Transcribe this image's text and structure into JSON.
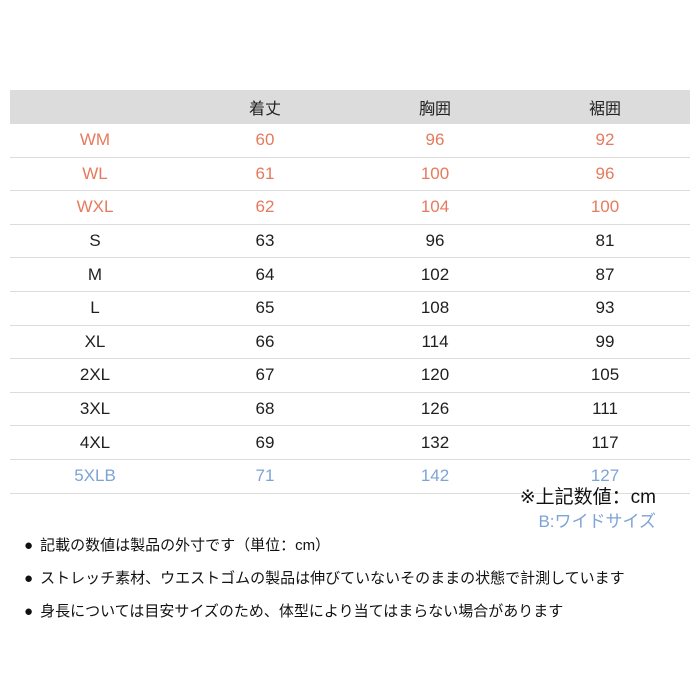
{
  "colors": {
    "orange_rows": "#e67a5d",
    "blue_row": "#7ea3d6",
    "header_bg": "#dcdcdc",
    "divider": "#dcdcdc",
    "text": "#1f1f1f"
  },
  "chart_data": {
    "type": "table",
    "title": "",
    "columns": [
      "",
      "着丈",
      "胸囲",
      "裾囲"
    ],
    "unit": "cm",
    "rows": [
      {
        "size": "WM",
        "values": [
          60,
          96,
          92
        ],
        "color": "orange"
      },
      {
        "size": "WL",
        "values": [
          61,
          100,
          96
        ],
        "color": "orange"
      },
      {
        "size": "WXL",
        "values": [
          62,
          104,
          100
        ],
        "color": "orange"
      },
      {
        "size": "S",
        "values": [
          63,
          96,
          81
        ],
        "color": "black"
      },
      {
        "size": "M",
        "values": [
          64,
          102,
          87
        ],
        "color": "black"
      },
      {
        "size": "L",
        "values": [
          65,
          108,
          93
        ],
        "color": "black"
      },
      {
        "size": "XL",
        "values": [
          66,
          114,
          99
        ],
        "color": "black"
      },
      {
        "size": "2XL",
        "values": [
          67,
          120,
          105
        ],
        "color": "black"
      },
      {
        "size": "3XL",
        "values": [
          68,
          126,
          111
        ],
        "color": "black"
      },
      {
        "size": "4XL",
        "values": [
          69,
          132,
          117
        ],
        "color": "black"
      },
      {
        "size": "5XLB",
        "values": [
          71,
          142,
          127
        ],
        "color": "blue"
      }
    ]
  },
  "notes": {
    "unit_note": "※上記数値：cm",
    "wide_size_note": "B:ワイドサイズ",
    "bullet_icon": "●",
    "bullets": [
      "記載の数値は製品の外寸です（単位：cm）",
      "ストレッチ素材、ウエストゴムの製品は伸びていないそのままの状態で計測しています",
      "身長については目安サイズのため、体型により当てはまらない場合があります"
    ]
  }
}
